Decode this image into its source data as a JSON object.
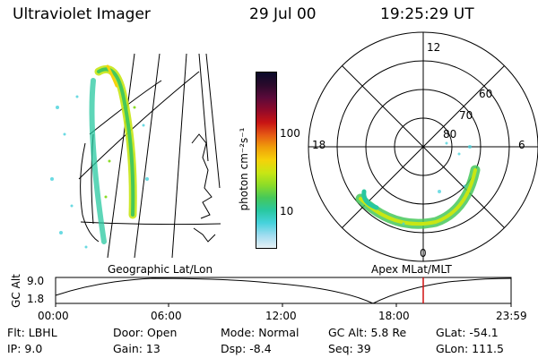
{
  "header": {
    "instrument": "Ultraviolet Imager",
    "date": "29 Jul 00",
    "time": "19:25:29 UT"
  },
  "colorbar": {
    "label": "photon cm⁻²s⁻¹",
    "ticks": [
      "100",
      "10"
    ],
    "colors": [
      "#0a0a2a",
      "#2b0a2b",
      "#5a0a3a",
      "#900a2a",
      "#c81414",
      "#e65a14",
      "#f0a00a",
      "#f5d20a",
      "#c8e614",
      "#8cdc28",
      "#46c85a",
      "#28c8a0",
      "#46d2dc",
      "#a0dcf0",
      "#e6f0f5"
    ]
  },
  "geo_panel": {
    "label": "Geographic Lat/Lon"
  },
  "polar_panel": {
    "label": "Apex MLat/MLT",
    "lat_labels": [
      "60",
      "70",
      "80"
    ],
    "mlt_labels": {
      "top": "12",
      "left": "18",
      "right": "6",
      "bottom": "0"
    }
  },
  "altitude_plot": {
    "ylabel": "GC Alt",
    "y_ticks": [
      "9.0",
      "1.8"
    ],
    "x_ticks": [
      "00:00",
      "06:00",
      "12:00",
      "18:00",
      "23:59"
    ],
    "current_time_marker_color": "#d01010"
  },
  "info": {
    "row1": {
      "filter": "Flt:  LBHL",
      "door": "Door:  Open",
      "mode": "Mode:  Normal",
      "gc_alt": "GC Alt:  5.8 Re",
      "glat": "GLat:  -54.1"
    },
    "row2": {
      "ip": "IP:  9.0",
      "gain": "Gain:  13",
      "dsp": "Dsp:     -8.4",
      "seq": "Seq:  39",
      "glon": "GLon:  111.5"
    }
  }
}
